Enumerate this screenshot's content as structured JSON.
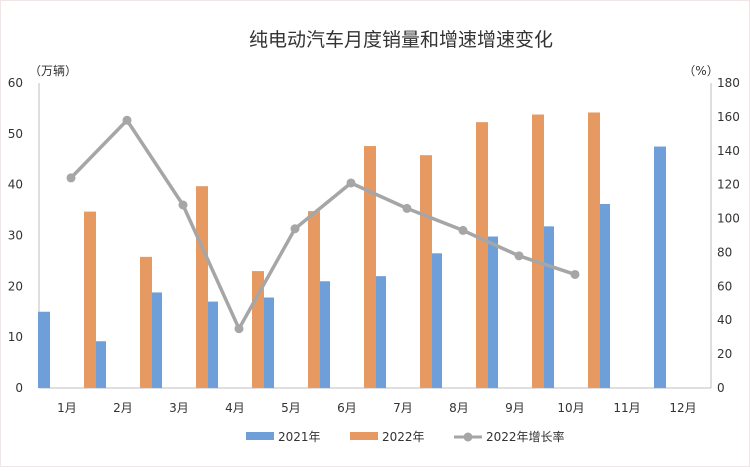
{
  "chart_data": {
    "type": "bar",
    "title": "纯电动汽车月度销量和增速增速变化",
    "y_left_unit": "（万辆）",
    "y_right_unit": "（%）",
    "categories": [
      "1月",
      "2月",
      "3月",
      "4月",
      "5月",
      "6月",
      "7月",
      "8月",
      "9月",
      "10月",
      "11月",
      "12月"
    ],
    "ylim_left": [
      0,
      60
    ],
    "ylim_right": [
      0,
      180
    ],
    "yticks_left": [
      "0",
      "10",
      "20",
      "30",
      "40",
      "50",
      "60"
    ],
    "yticks_right": [
      "0",
      "20",
      "40",
      "60",
      "80",
      "100",
      "120",
      "140",
      "160",
      "180"
    ],
    "series": [
      {
        "name": "2021年",
        "type": "bar",
        "axis": "left",
        "color": "#6f9fd8",
        "values": [
          15,
          9.2,
          18.8,
          17,
          17.8,
          21,
          22,
          26.5,
          29.8,
          31.8,
          36.2,
          47.5
        ]
      },
      {
        "name": "2022年",
        "type": "bar",
        "axis": "left",
        "color": "#e69a61",
        "values": [
          34.7,
          25.8,
          39.7,
          23,
          34.8,
          47.6,
          45.8,
          52.3,
          53.8,
          54.2,
          null,
          null
        ]
      },
      {
        "name": "2022年增长率",
        "type": "line",
        "axis": "right",
        "color": "#a6a6a6",
        "values": [
          124,
          158,
          108,
          35,
          94,
          121,
          106,
          93,
          78,
          67,
          null,
          null
        ]
      }
    ],
    "legend_position": "bottom",
    "grid": false
  }
}
